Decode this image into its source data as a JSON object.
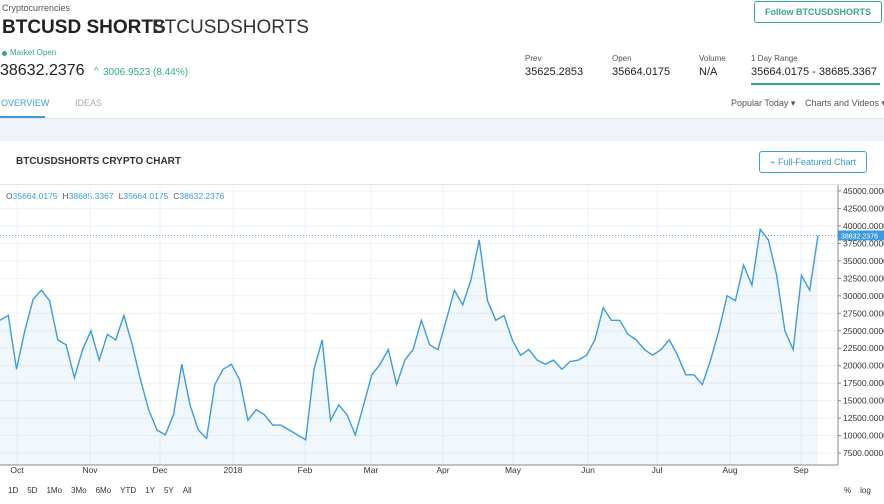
{
  "header": {
    "breadcrumb": "Cryptocurrencies",
    "title": "BTCUSD SHORTS",
    "ticker": "BTCUSDSHORTS",
    "follow": "Follow BTCUSDSHORTS",
    "status": "Market Open",
    "price": "38632.2376",
    "change": "3006.9523 (8.44%)"
  },
  "stats": [
    {
      "label": "Prev",
      "value": "35625.2853"
    },
    {
      "label": "Open",
      "value": "35664.0175"
    },
    {
      "label": "Volume",
      "value": "N/A"
    },
    {
      "label": "1 Day Range",
      "value": "35664.0175 - 38685.3367"
    }
  ],
  "tabs": [
    "OVERVIEW",
    "IDEAS"
  ],
  "menus": [
    "Popular Today",
    "Charts and Videos"
  ],
  "panel": {
    "title": "BTCUSDSHORTS CRYPTO CHART",
    "button": "Full-Featured Chart",
    "ohlc": [
      {
        "key": "O",
        "value": "35664.0175"
      },
      {
        "key": "H",
        "value": "38685.3367"
      },
      {
        "key": "L",
        "value": "35664.0175"
      },
      {
        "key": "C",
        "value": "38632.2376"
      }
    ],
    "chart": {
      "type": "line",
      "color": "#3d9be0",
      "grid": true,
      "xlabels": [
        "Oct",
        "Nov",
        "Dec",
        "2018",
        "Feb",
        "Mar",
        "Apr",
        "May",
        "Jun",
        "Jul",
        "Aug",
        "Sep"
      ],
      "values": [
        26500,
        27200,
        19500,
        25000,
        29500,
        30800,
        29300,
        23700,
        23000,
        18300,
        22300,
        25000,
        20800,
        24500,
        23700,
        27200,
        23000,
        18000,
        13700,
        10800,
        10100,
        13000,
        20200,
        14400,
        10800,
        9600,
        17300,
        19500,
        20200,
        18000,
        12200,
        13700,
        13000,
        11500,
        11500,
        10800,
        10100,
        9400,
        19500,
        23700,
        12200,
        14400,
        13000,
        10100,
        14400,
        18700,
        20200,
        22300,
        17300,
        20800,
        22300,
        26500,
        23000,
        22300,
        26500,
        30800,
        28700,
        32300,
        38000,
        29300,
        26500,
        27200,
        23700,
        21500,
        22300,
        20800,
        20200,
        20800,
        19500,
        20600,
        20800,
        21500,
        23700,
        28300,
        26500,
        26500,
        24500,
        23700,
        22300,
        21500,
        22300,
        23700,
        21500,
        18700,
        18700,
        17300,
        20800,
        25000,
        30000,
        29300,
        34400,
        31500,
        39500,
        38000,
        32900,
        25000,
        22300,
        32900,
        30800,
        38632.2376
      ],
      "ylim": [
        5800,
        45850
      ],
      "yticks": [
        {
          "value": 7500,
          "label": "7500.0000"
        },
        {
          "value": 10000,
          "label": "10000.0000"
        },
        {
          "value": 12500,
          "label": "12500.0000"
        },
        {
          "value": 15000,
          "label": "15000.0000"
        },
        {
          "value": 17500,
          "label": "17500.0000"
        },
        {
          "value": 20000,
          "label": "20000.0000"
        },
        {
          "value": 22500,
          "label": "22500.0000"
        },
        {
          "value": 25000,
          "label": "25000.0000"
        },
        {
          "value": 27500,
          "label": "27500.0000"
        },
        {
          "value": 30000,
          "label": "30000.0000"
        },
        {
          "value": 32500,
          "label": "32500.0000"
        },
        {
          "value": 35000,
          "label": "35000.0000"
        },
        {
          "value": 37500,
          "label": "37500.0000"
        },
        {
          "value": 40000,
          "label": "40000.0000"
        },
        {
          "value": 42500,
          "label": "42500.0000"
        },
        {
          "value": 45000,
          "label": "45000.0000"
        }
      ]
    },
    "ranges": [
      "1D",
      "5D",
      "1Mo",
      "3Mo",
      "6Mo",
      "YTD",
      "1Y",
      "5Y",
      "All"
    ],
    "scales": [
      "%",
      "log"
    ]
  }
}
